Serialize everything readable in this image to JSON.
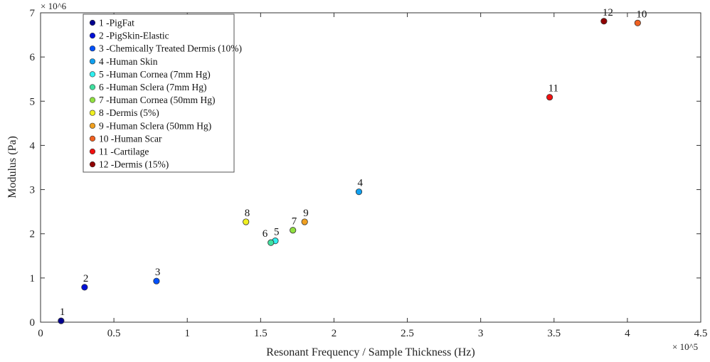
{
  "chart_data": {
    "type": "scatter",
    "title": "",
    "xlabel": "Resonant Frequency / Sample Thickness (Hz)",
    "ylabel": "Modulus (Pa)",
    "x_multiplier": "× 10^5",
    "y_multiplier": "× 10^6",
    "xlim": [
      0,
      4.5
    ],
    "ylim": [
      0,
      7
    ],
    "xticks": [
      "0",
      "0.5",
      "1",
      "1.5",
      "2",
      "2.5",
      "3",
      "3.5",
      "4",
      "4.5"
    ],
    "yticks": [
      "0",
      "1",
      "2",
      "3",
      "4",
      "5",
      "6",
      "7"
    ],
    "grid": false,
    "legend_placement": "top-left",
    "points": [
      {
        "id": "1",
        "name": "1 -PigFat",
        "x": 0.14,
        "y": 0.03,
        "color": "#00008f"
      },
      {
        "id": "2",
        "name": "2 -PigSkin-Elastic",
        "x": 0.3,
        "y": 0.79,
        "color": "#0010d8"
      },
      {
        "id": "3",
        "name": "3 -Chemically Treated Dermis (10%)",
        "x": 0.79,
        "y": 0.93,
        "color": "#0050ff"
      },
      {
        "id": "4",
        "name": "4 -Human Skin",
        "x": 2.17,
        "y": 2.95,
        "color": "#10a0f0"
      },
      {
        "id": "5",
        "name": "5 -Human Cornea (7mm Hg)",
        "x": 1.6,
        "y": 1.84,
        "color": "#30f0f0"
      },
      {
        "id": "6",
        "name": "6 -Human Sclera (7mm Hg)",
        "x": 1.57,
        "y": 1.8,
        "color": "#40e0a0"
      },
      {
        "id": "7",
        "name": "7 -Human Cornea (50mm Hg)",
        "x": 1.72,
        "y": 2.08,
        "color": "#90e040"
      },
      {
        "id": "8",
        "name": "8 -Dermis (5%)",
        "x": 1.4,
        "y": 2.27,
        "color": "#f0f020"
      },
      {
        "id": "9",
        "name": "9 -Human Sclera (50mm Hg)",
        "x": 1.8,
        "y": 2.27,
        "color": "#f0a020"
      },
      {
        "id": "10",
        "name": "10 -Human Scar",
        "x": 4.07,
        "y": 6.77,
        "color": "#f06020"
      },
      {
        "id": "11",
        "name": "11 -Cartilage",
        "x": 3.47,
        "y": 5.09,
        "color": "#f01010"
      },
      {
        "id": "12",
        "name": "12 -Dermis (15%)",
        "x": 3.84,
        "y": 6.81,
        "color": "#900000"
      }
    ]
  }
}
